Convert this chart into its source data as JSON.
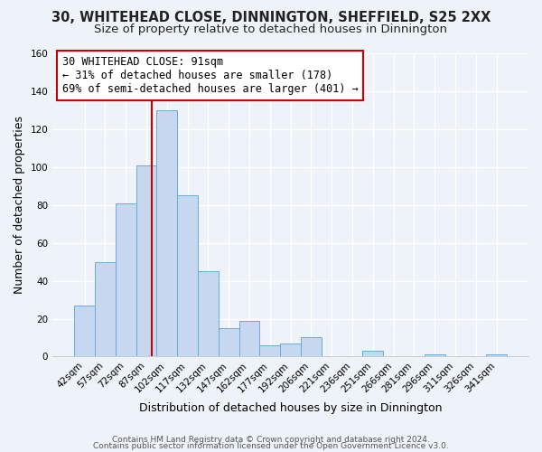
{
  "title_line1": "30, WHITEHEAD CLOSE, DINNINGTON, SHEFFIELD, S25 2XX",
  "title_line2": "Size of property relative to detached houses in Dinnington",
  "xlabel": "Distribution of detached houses by size in Dinnington",
  "ylabel": "Number of detached properties",
  "bar_labels": [
    "42sqm",
    "57sqm",
    "72sqm",
    "87sqm",
    "102sqm",
    "117sqm",
    "132sqm",
    "147sqm",
    "162sqm",
    "177sqm",
    "192sqm",
    "206sqm",
    "221sqm",
    "236sqm",
    "251sqm",
    "266sqm",
    "281sqm",
    "296sqm",
    "311sqm",
    "326sqm",
    "341sqm"
  ],
  "bar_values": [
    27,
    50,
    81,
    101,
    130,
    85,
    45,
    15,
    19,
    6,
    7,
    10,
    0,
    0,
    3,
    0,
    0,
    1,
    0,
    0,
    1
  ],
  "bar_color": "#c5d8f0",
  "bar_edge_color": "#6aabd2",
  "vline_color": "#cc0000",
  "annotation_text": "30 WHITEHEAD CLOSE: 91sqm\n← 31% of detached houses are smaller (178)\n69% of semi-detached houses are larger (401) →",
  "annotation_box_edgecolor": "#cc0000",
  "annotation_box_facecolor": "#ffffff",
  "ylim": [
    0,
    160
  ],
  "yticks": [
    0,
    20,
    40,
    60,
    80,
    100,
    120,
    140,
    160
  ],
  "footer_line1": "Contains HM Land Registry data © Crown copyright and database right 2024.",
  "footer_line2": "Contains public sector information licensed under the Open Government Licence v3.0.",
  "background_color": "#eef2f9",
  "grid_color": "#ffffff",
  "title_fontsize": 10.5,
  "subtitle_fontsize": 9.5,
  "axis_label_fontsize": 9,
  "tick_fontsize": 7.5,
  "annotation_fontsize": 8.5,
  "footer_fontsize": 6.5
}
